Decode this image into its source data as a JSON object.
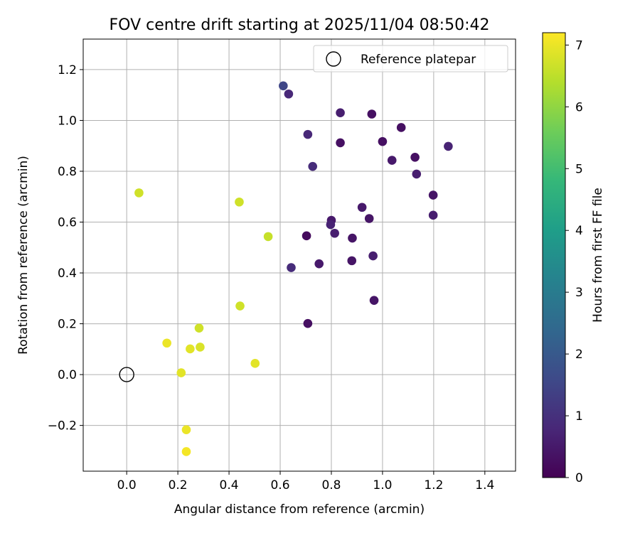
{
  "chart_data": {
    "type": "scatter",
    "title": "FOV centre drift starting at 2025/11/04 08:50:42",
    "xlabel": "Angular distance from reference (arcmin)",
    "ylabel": "Rotation from reference (arcmin)",
    "xlim": [
      -0.17,
      1.52
    ],
    "ylim": [
      -0.38,
      1.32
    ],
    "xticks": [
      0.0,
      0.2,
      0.4,
      0.6,
      0.8,
      1.0,
      1.2,
      1.4
    ],
    "xtick_labels": [
      "0.0",
      "0.2",
      "0.4",
      "0.6",
      "0.8",
      "1.0",
      "1.2",
      "1.4"
    ],
    "yticks": [
      -0.2,
      0.0,
      0.2,
      0.4,
      0.6,
      0.8,
      1.0,
      1.2
    ],
    "ytick_labels": [
      "−0.2",
      "0.0",
      "0.2",
      "0.4",
      "0.6",
      "0.8",
      "1.0",
      "1.2"
    ],
    "grid": true,
    "legend": {
      "placement": "top-right",
      "entries": [
        {
          "label": "Reference platepar",
          "marker": "open-circle"
        }
      ]
    },
    "reference": {
      "x": 0.0,
      "y": 0.0
    },
    "colorbar": {
      "label": "Hours from first FF file",
      "colormap": "viridis",
      "range": [
        0,
        7.2
      ],
      "ticks": [
        0,
        1,
        2,
        3,
        4,
        5,
        6,
        7
      ],
      "tick_labels": [
        "0",
        "1",
        "2",
        "3",
        "4",
        "5",
        "6",
        "7"
      ]
    },
    "points": [
      {
        "x": 0.612,
        "y": 1.136,
        "hours": 1.5
      },
      {
        "x": 0.633,
        "y": 1.104,
        "hours": 0.8
      },
      {
        "x": 0.835,
        "y": 1.03,
        "hours": 0.6
      },
      {
        "x": 0.958,
        "y": 1.025,
        "hours": 0.3
      },
      {
        "x": 1.073,
        "y": 0.972,
        "hours": 0.3
      },
      {
        "x": 0.708,
        "y": 0.945,
        "hours": 0.8
      },
      {
        "x": 0.835,
        "y": 0.912,
        "hours": 0.3
      },
      {
        "x": 1.0,
        "y": 0.917,
        "hours": 0.3
      },
      {
        "x": 1.257,
        "y": 0.898,
        "hours": 0.7
      },
      {
        "x": 1.127,
        "y": 0.855,
        "hours": 0.3
      },
      {
        "x": 1.037,
        "y": 0.843,
        "hours": 0.5
      },
      {
        "x": 0.727,
        "y": 0.819,
        "hours": 0.9
      },
      {
        "x": 1.133,
        "y": 0.789,
        "hours": 0.6
      },
      {
        "x": 1.198,
        "y": 0.706,
        "hours": 0.4
      },
      {
        "x": 0.92,
        "y": 0.658,
        "hours": 0.5
      },
      {
        "x": 1.198,
        "y": 0.627,
        "hours": 0.6
      },
      {
        "x": 0.948,
        "y": 0.614,
        "hours": 0.4
      },
      {
        "x": 0.8,
        "y": 0.607,
        "hours": 0.5
      },
      {
        "x": 0.797,
        "y": 0.59,
        "hours": 0.7
      },
      {
        "x": 0.813,
        "y": 0.556,
        "hours": 0.6
      },
      {
        "x": 0.703,
        "y": 0.546,
        "hours": 0.2
      },
      {
        "x": 0.882,
        "y": 0.537,
        "hours": 0.4
      },
      {
        "x": 0.963,
        "y": 0.467,
        "hours": 0.6
      },
      {
        "x": 0.88,
        "y": 0.448,
        "hours": 0.4
      },
      {
        "x": 0.752,
        "y": 0.436,
        "hours": 0.5
      },
      {
        "x": 0.643,
        "y": 0.421,
        "hours": 0.9
      },
      {
        "x": 0.967,
        "y": 0.292,
        "hours": 0.4
      },
      {
        "x": 0.708,
        "y": 0.201,
        "hours": 0.3
      },
      {
        "x": 0.048,
        "y": 0.715,
        "hours": 6.7
      },
      {
        "x": 0.44,
        "y": 0.679,
        "hours": 6.7
      },
      {
        "x": 0.553,
        "y": 0.543,
        "hours": 6.6
      },
      {
        "x": 0.443,
        "y": 0.27,
        "hours": 6.7
      },
      {
        "x": 0.283,
        "y": 0.183,
        "hours": 6.7
      },
      {
        "x": 0.157,
        "y": 0.124,
        "hours": 7.0
      },
      {
        "x": 0.287,
        "y": 0.108,
        "hours": 6.8
      },
      {
        "x": 0.248,
        "y": 0.101,
        "hours": 6.9
      },
      {
        "x": 0.502,
        "y": 0.044,
        "hours": 6.9
      },
      {
        "x": 0.213,
        "y": 0.007,
        "hours": 6.9
      },
      {
        "x": 0.233,
        "y": -0.217,
        "hours": 7.0
      },
      {
        "x": 0.233,
        "y": -0.303,
        "hours": 7.1
      }
    ]
  }
}
